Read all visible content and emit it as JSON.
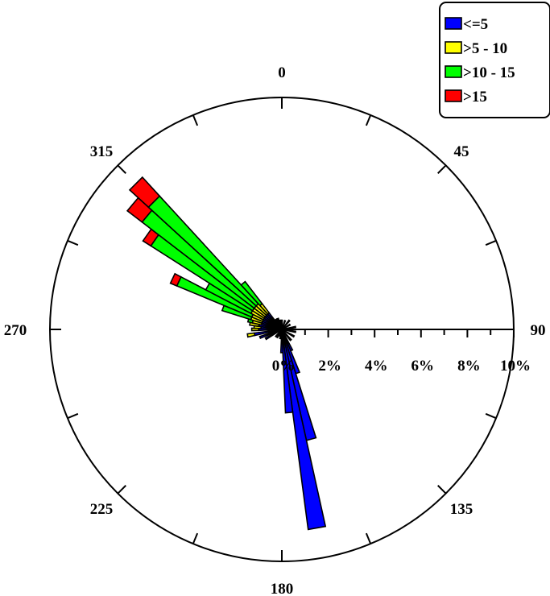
{
  "chart_data": {
    "type": "wind-rose",
    "title": "",
    "direction_labels": [
      "0",
      "45",
      "90",
      "135",
      "180",
      "225",
      "270",
      "315"
    ],
    "direction_label_angles": [
      0,
      45,
      90,
      135,
      180,
      225,
      270,
      315
    ],
    "radial_axis": {
      "unit": "%",
      "max": 10,
      "major_ticks": [
        0,
        2,
        4,
        6,
        8,
        10
      ],
      "tick_labels": [
        "0%",
        "2%",
        "4%",
        "6%",
        "8%",
        "10%"
      ],
      "tick_label_angle": 90
    },
    "bin_width_degrees": 5,
    "colors": {
      "<=5": "#0000ff",
      ">5 - 10": "#ffff00",
      ">10 - 15": "#00ff00",
      ">15": "#ff0000"
    },
    "legend_position": "top-right",
    "series": [
      {
        "name": "<=5"
      },
      {
        "name": ">5 - 10"
      },
      {
        "name": ">10 - 15"
      },
      {
        "name": ">15"
      }
    ],
    "bins": [
      {
        "direction": 0,
        "values": [
          0.4,
          0,
          0,
          0
        ]
      },
      {
        "direction": 20,
        "values": [
          0.4,
          0,
          0,
          0
        ]
      },
      {
        "direction": 40,
        "values": [
          0.5,
          0,
          0,
          0
        ]
      },
      {
        "direction": 60,
        "values": [
          0.4,
          0,
          0,
          0
        ]
      },
      {
        "direction": 80,
        "values": [
          0.6,
          0,
          0,
          0
        ]
      },
      {
        "direction": 100,
        "values": [
          0.6,
          0,
          0,
          0
        ]
      },
      {
        "direction": 120,
        "values": [
          0.6,
          0,
          0,
          0
        ]
      },
      {
        "direction": 140,
        "values": [
          0.6,
          0,
          0,
          0
        ]
      },
      {
        "direction": 155,
        "values": [
          1.0,
          0,
          0,
          0
        ]
      },
      {
        "direction": 160,
        "values": [
          2.0,
          0,
          0,
          0
        ]
      },
      {
        "direction": 165,
        "values": [
          4.9,
          0,
          0,
          0
        ]
      },
      {
        "direction": 170,
        "values": [
          8.7,
          0,
          0,
          0
        ]
      },
      {
        "direction": 175,
        "values": [
          3.6,
          0,
          0,
          0
        ]
      },
      {
        "direction": 180,
        "values": [
          1.0,
          0,
          0,
          0
        ]
      },
      {
        "direction": 190,
        "values": [
          0.4,
          0,
          0,
          0
        ]
      },
      {
        "direction": 200,
        "values": [
          0.3,
          0,
          0,
          0
        ]
      },
      {
        "direction": 210,
        "values": [
          0.4,
          0,
          0,
          0
        ]
      },
      {
        "direction": 220,
        "values": [
          0.4,
          0,
          0,
          0
        ]
      },
      {
        "direction": 240,
        "values": [
          0.8,
          0,
          0,
          0
        ]
      },
      {
        "direction": 250,
        "values": [
          1.0,
          0,
          0,
          0
        ]
      },
      {
        "direction": 260,
        "values": [
          1.2,
          0.3,
          0,
          0
        ]
      },
      {
        "direction": 270,
        "values": [
          1.0,
          0.3,
          0,
          0
        ]
      },
      {
        "direction": 275,
        "values": [
          0.9,
          0.3,
          0,
          0
        ]
      },
      {
        "direction": 280,
        "values": [
          1.0,
          0.4,
          0,
          0
        ]
      },
      {
        "direction": 285,
        "values": [
          0.9,
          0.4,
          0.2,
          0
        ]
      },
      {
        "direction": 290,
        "values": [
          0.9,
          0.5,
          1.3,
          0
        ]
      },
      {
        "direction": 295,
        "values": [
          0.9,
          0.5,
          3.5,
          0.3
        ]
      },
      {
        "direction": 300,
        "values": [
          0.9,
          0.6,
          2.2,
          0
        ]
      },
      {
        "direction": 305,
        "values": [
          0.9,
          0.6,
          5.2,
          0.4
        ]
      },
      {
        "direction": 310,
        "values": [
          0.9,
          0.6,
          6.1,
          0.8
        ]
      },
      {
        "direction": 315,
        "values": [
          0.9,
          0.6,
          6.3,
          1.1
        ]
      },
      {
        "direction": 320,
        "values": [
          0.9,
          0.5,
          1.2,
          0
        ]
      },
      {
        "direction": 330,
        "values": [
          0.5,
          0,
          0,
          0
        ]
      },
      {
        "direction": 340,
        "values": [
          0.5,
          0,
          0,
          0
        ]
      },
      {
        "direction": 350,
        "values": [
          0.4,
          0,
          0,
          0
        ]
      }
    ]
  }
}
